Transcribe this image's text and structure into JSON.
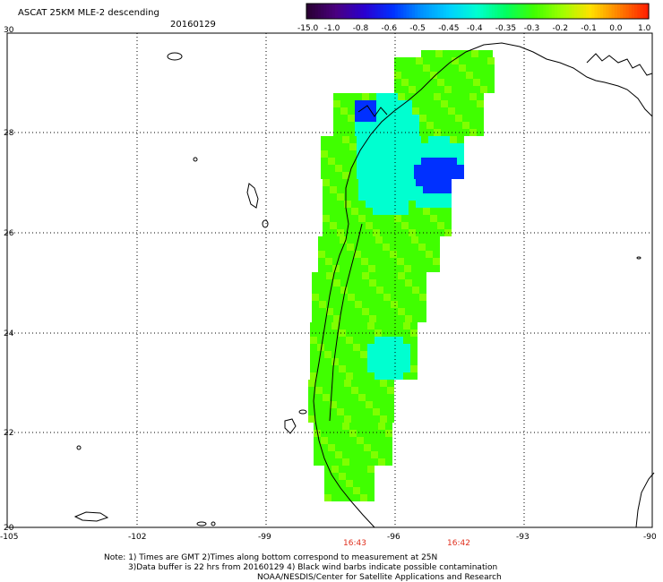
{
  "header": {
    "title": "ASCAT 25KM MLE-2 descending",
    "date": "20160129"
  },
  "colorbar": {
    "labels": [
      "-15.0",
      "-1.0",
      "-0.8",
      "-0.6",
      "-0.5",
      "-0.45",
      "-0.4",
      "-0.35",
      "-0.3",
      "-0.2",
      "-0.1",
      "0.0",
      "1.0"
    ],
    "colors": [
      "#2a0033",
      "#4a0080",
      "#2a00d0",
      "#0030ff",
      "#0090ff",
      "#00d0ff",
      "#00ffd0",
      "#00ff60",
      "#40ff00",
      "#a0ff00",
      "#ffe000",
      "#ff8000",
      "#ff2000"
    ]
  },
  "axes": {
    "lat_labels": [
      "30",
      "28",
      "26",
      "24",
      "22",
      "20"
    ],
    "lon_labels": [
      "-105",
      "-102",
      "-99",
      "-96",
      "-93",
      "-90"
    ]
  },
  "times": [
    "16:43",
    "16:42"
  ],
  "notes": {
    "line1": "Note: 1) Times are GMT 2)Times along bottom correspond to measurement at 25N",
    "line2": "3)Data buffer is 22 hrs from 20160129 4) Black wind barbs indicate possible contamination",
    "line3": "NOAA/NESDIS/Center for Satellite Applications and Research"
  },
  "legend_colors": {
    "green": "#40ff00",
    "cyan": "#00ffd0",
    "blue": "#0030ff"
  }
}
